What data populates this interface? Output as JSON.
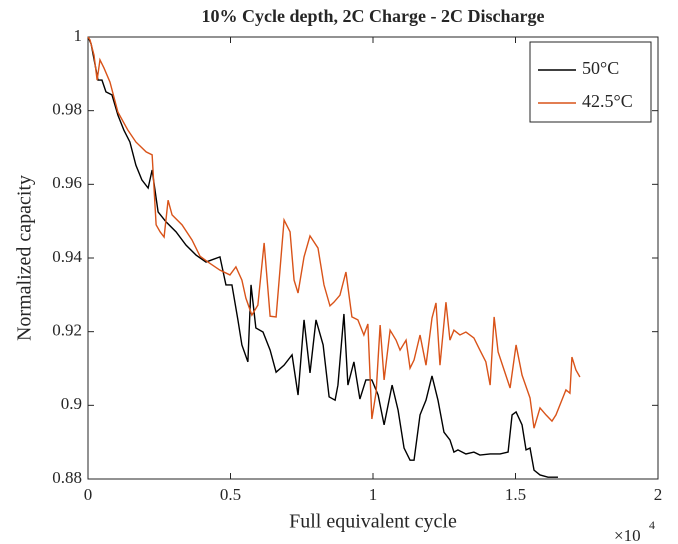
{
  "chart_data": {
    "type": "line",
    "title": "10% Cycle depth, 2C Charge - 2C Discharge",
    "x_label": "Full equivalent cycle",
    "y_label": "Normalized capacity",
    "x_multiplier": {
      "base": "×10",
      "exponent": "4"
    },
    "xlim": [
      0,
      2
    ],
    "xticks": [
      0,
      0.5,
      1,
      1.5,
      2
    ],
    "ylim": [
      0.88,
      1
    ],
    "yticks": [
      0.88,
      0.9,
      0.92,
      0.94,
      0.96,
      0.98,
      1
    ],
    "legend": "northeast",
    "grid": false,
    "series": [
      {
        "name": "50°C",
        "color": "#000000",
        "x": [
          0,
          0.011,
          0.025,
          0.035,
          0.049,
          0.063,
          0.084,
          0.105,
          0.126,
          0.147,
          0.168,
          0.189,
          0.211,
          0.225,
          0.246,
          0.274,
          0.309,
          0.344,
          0.379,
          0.414,
          0.435,
          0.463,
          0.484,
          0.505,
          0.526,
          0.54,
          0.561,
          0.572,
          0.589,
          0.614,
          0.639,
          0.66,
          0.688,
          0.716,
          0.737,
          0.758,
          0.779,
          0.8,
          0.825,
          0.846,
          0.867,
          0.877,
          0.898,
          0.912,
          0.933,
          0.954,
          0.975,
          0.996,
          1.018,
          1.039,
          1.067,
          1.088,
          1.109,
          1.13,
          1.144,
          1.165,
          1.186,
          1.207,
          1.228,
          1.249,
          1.27,
          1.284,
          1.298,
          1.326,
          1.354,
          1.375,
          1.411,
          1.446,
          1.474,
          1.488,
          1.502,
          1.523,
          1.537,
          1.551,
          1.565,
          1.586,
          1.614,
          1.649
        ],
        "values": [
          1,
          0.9981,
          0.9924,
          0.9883,
          0.9883,
          0.9851,
          0.9843,
          0.9788,
          0.9747,
          0.9715,
          0.9652,
          0.9612,
          0.959,
          0.9639,
          0.9525,
          0.9498,
          0.9471,
          0.9435,
          0.9408,
          0.9389,
          0.9395,
          0.9403,
          0.9327,
          0.9327,
          0.9232,
          0.9164,
          0.9118,
          0.9327,
          0.921,
          0.9199,
          0.915,
          0.909,
          0.9109,
          0.9137,
          0.9028,
          0.9232,
          0.9088,
          0.9232,
          0.9164,
          0.9023,
          0.9014,
          0.9055,
          0.9248,
          0.9055,
          0.9118,
          0.9017,
          0.9069,
          0.9069,
          0.9028,
          0.8947,
          0.9055,
          0.8987,
          0.8884,
          0.8851,
          0.8851,
          0.8974,
          0.9014,
          0.908,
          0.9014,
          0.8927,
          0.8906,
          0.8873,
          0.8879,
          0.8868,
          0.8873,
          0.8865,
          0.8868,
          0.8868,
          0.8873,
          0.8974,
          0.8982,
          0.8947,
          0.8879,
          0.8884,
          0.8824,
          0.8811,
          0.8805,
          0.8805
        ]
      },
      {
        "name": "42.5°C",
        "color": "#d95319",
        "x": [
          0,
          0.007,
          0.021,
          0.032,
          0.042,
          0.056,
          0.077,
          0.105,
          0.14,
          0.168,
          0.204,
          0.225,
          0.239,
          0.253,
          0.267,
          0.281,
          0.295,
          0.33,
          0.365,
          0.393,
          0.421,
          0.463,
          0.498,
          0.519,
          0.54,
          0.554,
          0.575,
          0.596,
          0.618,
          0.639,
          0.66,
          0.688,
          0.709,
          0.723,
          0.737,
          0.758,
          0.779,
          0.807,
          0.828,
          0.849,
          0.863,
          0.884,
          0.905,
          0.926,
          0.947,
          0.968,
          0.982,
          0.996,
          1.011,
          1.025,
          1.039,
          1.06,
          1.081,
          1.095,
          1.116,
          1.13,
          1.144,
          1.165,
          1.186,
          1.207,
          1.221,
          1.235,
          1.256,
          1.27,
          1.284,
          1.305,
          1.326,
          1.354,
          1.375,
          1.396,
          1.411,
          1.425,
          1.439,
          1.46,
          1.481,
          1.502,
          1.523,
          1.551,
          1.565,
          1.586,
          1.607,
          1.628,
          1.642,
          1.677,
          1.691,
          1.698,
          1.712,
          1.726
        ],
        "values": [
          1,
          0.9992,
          0.9951,
          0.9883,
          0.9938,
          0.9916,
          0.9878,
          0.9796,
          0.9747,
          0.9715,
          0.9688,
          0.968,
          0.949,
          0.9471,
          0.9457,
          0.9557,
          0.9517,
          0.949,
          0.9449,
          0.9405,
          0.9389,
          0.9367,
          0.9354,
          0.9376,
          0.934,
          0.9291,
          0.9245,
          0.9272,
          0.9441,
          0.9242,
          0.924,
          0.9503,
          0.9471,
          0.934,
          0.9305,
          0.9403,
          0.946,
          0.9427,
          0.9327,
          0.927,
          0.928,
          0.9299,
          0.9362,
          0.924,
          0.9232,
          0.9191,
          0.9221,
          0.8963,
          0.9036,
          0.9218,
          0.9069,
          0.9204,
          0.9177,
          0.915,
          0.9177,
          0.9101,
          0.9123,
          0.9191,
          0.9109,
          0.9237,
          0.9278,
          0.9109,
          0.928,
          0.9177,
          0.9204,
          0.9191,
          0.9199,
          0.9183,
          0.915,
          0.9118,
          0.9055,
          0.924,
          0.9145,
          0.9096,
          0.9047,
          0.9164,
          0.9082,
          0.902,
          0.8938,
          0.8993,
          0.8974,
          0.8957,
          0.8974,
          0.9042,
          0.9033,
          0.9131,
          0.9096,
          0.9077
        ]
      }
    ]
  }
}
